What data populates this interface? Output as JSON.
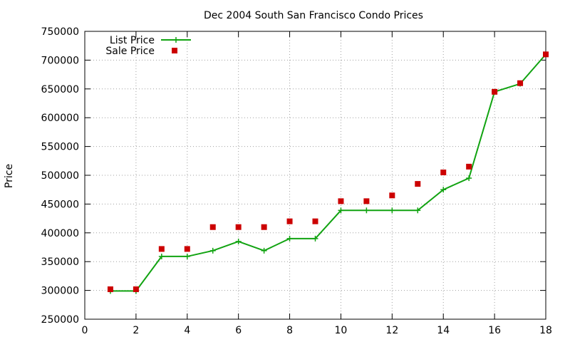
{
  "chart_data": {
    "type": "line",
    "title": "Dec 2004 South San Francisco Condo Prices",
    "xlabel": "",
    "ylabel": "Price",
    "xlim": [
      0,
      18
    ],
    "ylim": [
      250000,
      750000
    ],
    "xticks": [
      0,
      2,
      4,
      6,
      8,
      10,
      12,
      14,
      16,
      18
    ],
    "yticks": [
      250000,
      300000,
      350000,
      400000,
      450000,
      500000,
      550000,
      600000,
      650000,
      700000,
      750000
    ],
    "grid": true,
    "legend_position": "top-left",
    "series": [
      {
        "name": "List Price",
        "style": "line-with-plus-markers",
        "color": "#11a311",
        "x": [
          1,
          2,
          3,
          4,
          5,
          6,
          7,
          8,
          9,
          10,
          11,
          12,
          13,
          14,
          15,
          16,
          17,
          18
        ],
        "y": [
          299000,
          299000,
          359000,
          359000,
          369000,
          385000,
          369000,
          390000,
          390000,
          439000,
          439000,
          439000,
          439000,
          475000,
          495000,
          645000,
          659000,
          710000
        ]
      },
      {
        "name": "Sale Price",
        "style": "square-markers",
        "color": "#cc0000",
        "x": [
          1,
          2,
          3,
          4,
          5,
          6,
          7,
          8,
          9,
          10,
          11,
          12,
          13,
          14,
          15,
          16,
          17,
          18
        ],
        "y": [
          302000,
          302000,
          372000,
          372000,
          410000,
          410000,
          410000,
          420000,
          420000,
          455000,
          455000,
          465000,
          485000,
          505000,
          515000,
          645000,
          660000,
          710000
        ]
      }
    ]
  }
}
